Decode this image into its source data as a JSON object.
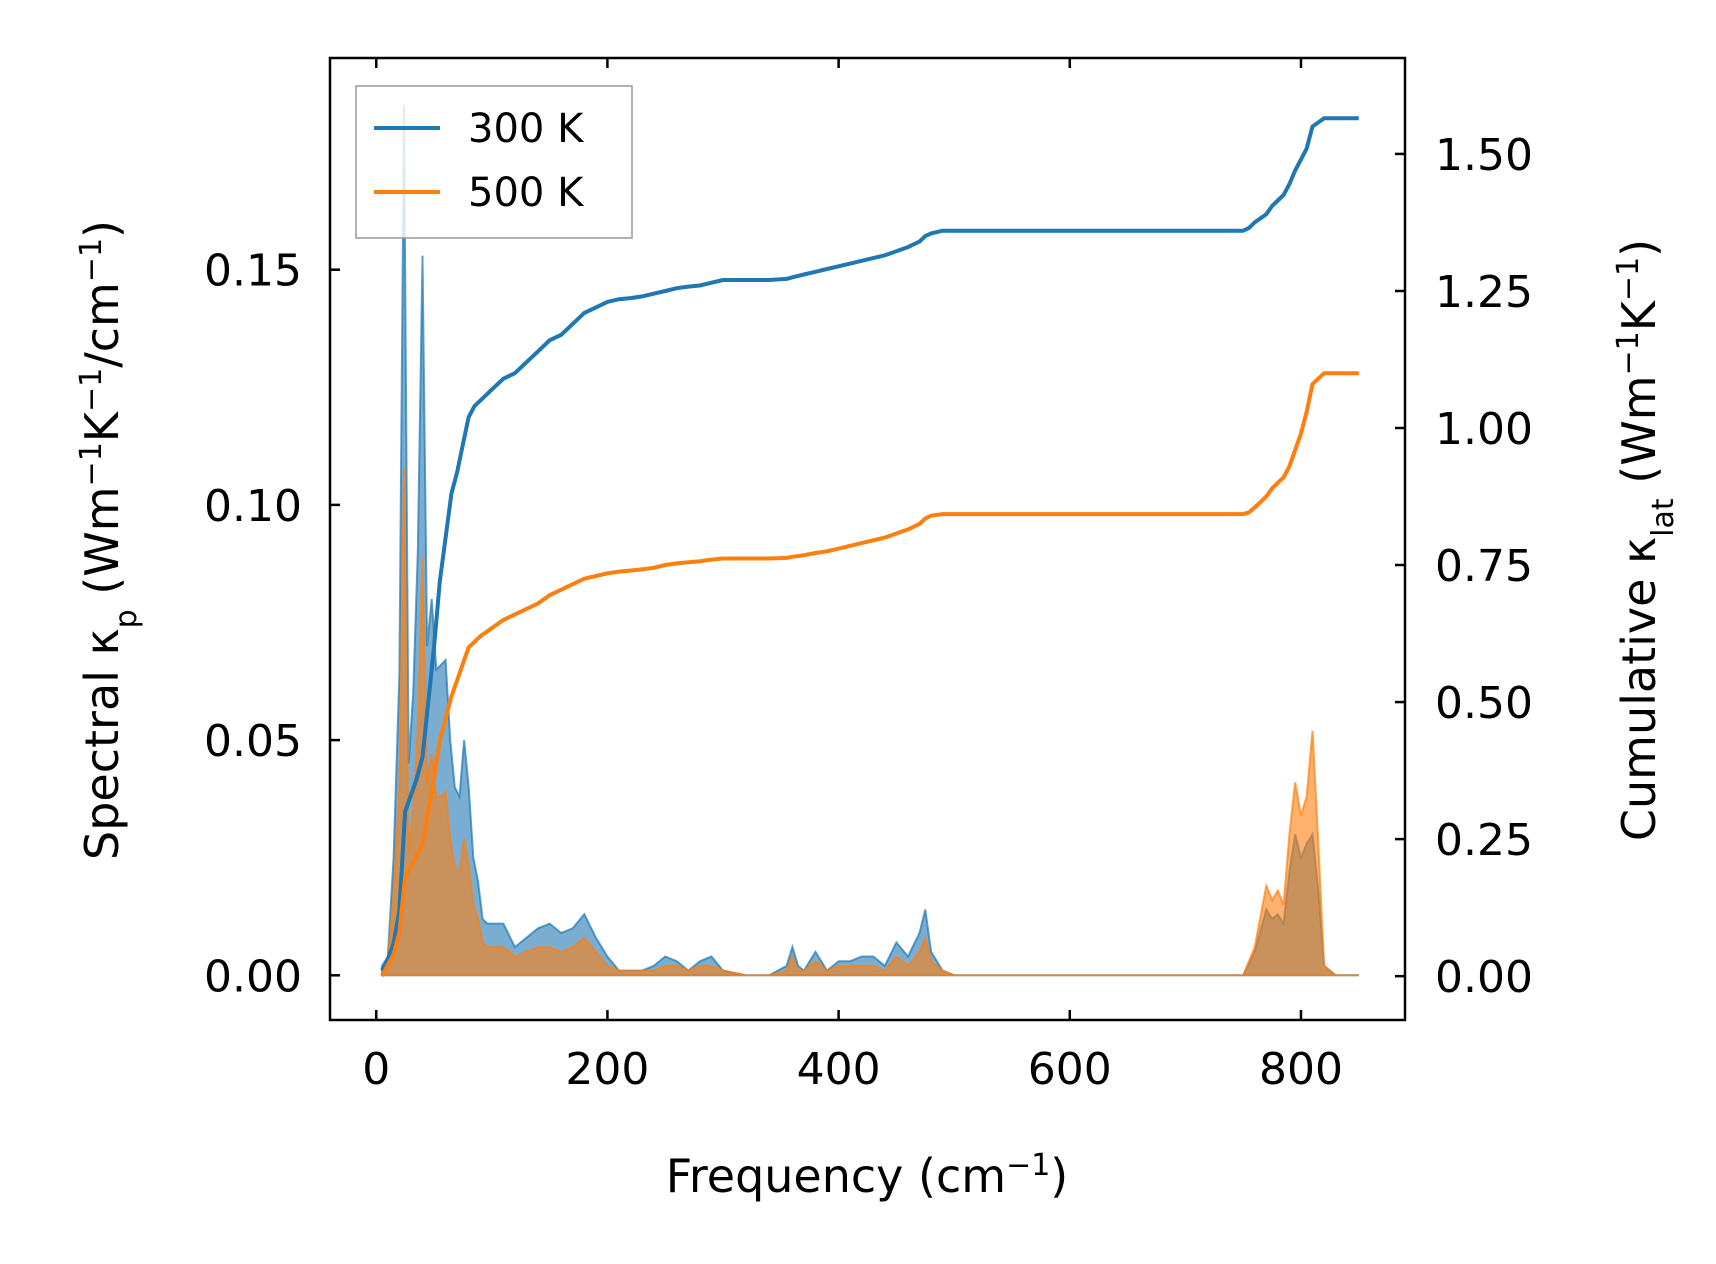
{
  "chart_data": {
    "type": "line",
    "title": "",
    "xlabel": {
      "text": "Frequency (cm",
      "sup": "−1",
      "close": ")"
    },
    "ylabel_left": {
      "text": "Spectral κ",
      "sub": "p",
      "unit": " (Wm",
      "sup1": "−1",
      "mid": "K",
      "sup2": "−1",
      "mid2": "/cm",
      "sup3": "−1",
      "close": ")"
    },
    "ylabel_right": {
      "text": "Cumulative κ",
      "sub": "lat",
      "unit": " (Wm",
      "sup1": "−1",
      "mid": "K",
      "sup2": "−1",
      "close": ")"
    },
    "xlim": [
      -40,
      890
    ],
    "ylim_left": [
      -0.0095,
      0.195
    ],
    "ylim_right": [
      -0.08,
      1.675
    ],
    "xticks": [
      "0",
      "200",
      "400",
      "600",
      "800"
    ],
    "xtick_values": [
      0,
      200,
      400,
      600,
      800
    ],
    "yticks_left": [
      "0.00",
      "0.05",
      "0.10",
      "0.15"
    ],
    "ytick_left_values": [
      0,
      0.05,
      0.1,
      0.15
    ],
    "yticks_right": [
      "0.00",
      "0.25",
      "0.50",
      "0.75",
      "1.00",
      "1.25",
      "1.50"
    ],
    "ytick_right_values": [
      0,
      0.25,
      0.5,
      0.75,
      1.0,
      1.25,
      1.5
    ],
    "legend": {
      "position": "top-left",
      "entries": [
        "300 K",
        "500 K"
      ]
    },
    "grid": false,
    "colors": {
      "300 K": "#1f77b4",
      "500 K": "#ff7f0e"
    },
    "spectral_series": [
      {
        "name": "300 K",
        "axis": "left",
        "x": [
          5,
          10,
          15,
          20,
          24,
          28,
          32,
          36,
          40,
          44,
          48,
          52,
          56,
          60,
          64,
          68,
          72,
          76,
          80,
          84,
          88,
          92,
          96,
          100,
          110,
          120,
          130,
          140,
          150,
          160,
          170,
          180,
          190,
          200,
          210,
          220,
          230,
          240,
          250,
          260,
          270,
          280,
          290,
          300,
          320,
          340,
          355,
          360,
          365,
          370,
          380,
          390,
          400,
          410,
          420,
          430,
          440,
          450,
          460,
          470,
          475,
          480,
          490,
          500,
          520,
          600,
          700,
          750,
          760,
          770,
          775,
          780,
          785,
          790,
          795,
          800,
          805,
          810,
          815,
          820,
          830,
          850
        ],
        "y": [
          0.002,
          0.004,
          0.025,
          0.064,
          0.185,
          0.045,
          0.06,
          0.09,
          0.153,
          0.07,
          0.08,
          0.065,
          0.066,
          0.067,
          0.05,
          0.04,
          0.038,
          0.05,
          0.04,
          0.025,
          0.02,
          0.012,
          0.011,
          0.011,
          0.011,
          0.006,
          0.008,
          0.01,
          0.011,
          0.009,
          0.01,
          0.013,
          0.008,
          0.004,
          0.001,
          0.001,
          0.001,
          0.002,
          0.004,
          0.003,
          0.001,
          0.003,
          0.004,
          0.001,
          0.0,
          0.0,
          0.002,
          0.006,
          0.002,
          0.001,
          0.005,
          0.001,
          0.003,
          0.003,
          0.004,
          0.004,
          0.002,
          0.007,
          0.004,
          0.009,
          0.014,
          0.005,
          0.001,
          0.0,
          0.0,
          0.0,
          0.0,
          0.0,
          0.005,
          0.014,
          0.012,
          0.013,
          0.011,
          0.022,
          0.03,
          0.025,
          0.028,
          0.03,
          0.018,
          0.002,
          0.0,
          0.0
        ]
      },
      {
        "name": "500 K",
        "axis": "left",
        "x": [
          5,
          10,
          15,
          20,
          24,
          28,
          32,
          36,
          40,
          44,
          48,
          52,
          56,
          60,
          64,
          68,
          72,
          76,
          80,
          84,
          88,
          92,
          96,
          100,
          110,
          120,
          130,
          140,
          150,
          160,
          170,
          180,
          190,
          200,
          210,
          220,
          230,
          240,
          250,
          260,
          270,
          280,
          290,
          300,
          320,
          340,
          355,
          360,
          365,
          370,
          380,
          390,
          400,
          410,
          420,
          430,
          440,
          450,
          460,
          470,
          475,
          480,
          490,
          500,
          520,
          600,
          700,
          750,
          760,
          770,
          775,
          780,
          785,
          790,
          795,
          800,
          805,
          810,
          815,
          820,
          830,
          850
        ],
        "y": [
          0.001,
          0.003,
          0.018,
          0.04,
          0.108,
          0.026,
          0.035,
          0.052,
          0.089,
          0.041,
          0.047,
          0.038,
          0.038,
          0.039,
          0.029,
          0.023,
          0.022,
          0.029,
          0.023,
          0.015,
          0.012,
          0.007,
          0.006,
          0.006,
          0.006,
          0.004,
          0.005,
          0.006,
          0.006,
          0.005,
          0.006,
          0.008,
          0.005,
          0.002,
          0.001,
          0.001,
          0.001,
          0.001,
          0.002,
          0.002,
          0.001,
          0.002,
          0.002,
          0.001,
          0.0,
          0.0,
          0.001,
          0.004,
          0.001,
          0.001,
          0.003,
          0.001,
          0.002,
          0.002,
          0.002,
          0.002,
          0.001,
          0.004,
          0.002,
          0.005,
          0.008,
          0.003,
          0.001,
          0.0,
          0.0,
          0.0,
          0.0,
          0.0,
          0.006,
          0.019,
          0.016,
          0.018,
          0.015,
          0.03,
          0.041,
          0.034,
          0.038,
          0.052,
          0.028,
          0.002,
          0.0,
          0.0
        ]
      }
    ],
    "cumulative_series": [
      {
        "name": "300 K",
        "axis": "right",
        "x": [
          5,
          10,
          15,
          20,
          25,
          30,
          35,
          40,
          45,
          50,
          55,
          60,
          65,
          70,
          75,
          80,
          85,
          90,
          100,
          110,
          120,
          130,
          140,
          150,
          160,
          170,
          180,
          190,
          200,
          210,
          220,
          230,
          240,
          250,
          260,
          270,
          280,
          290,
          300,
          320,
          340,
          355,
          360,
          370,
          380,
          390,
          400,
          420,
          440,
          460,
          470,
          475,
          480,
          490,
          500,
          520,
          600,
          700,
          750,
          755,
          760,
          770,
          775,
          780,
          785,
          790,
          795,
          800,
          805,
          810,
          820,
          850
        ],
        "y": [
          0.01,
          0.03,
          0.06,
          0.12,
          0.3,
          0.33,
          0.36,
          0.4,
          0.5,
          0.6,
          0.72,
          0.8,
          0.88,
          0.92,
          0.97,
          1.02,
          1.04,
          1.05,
          1.07,
          1.09,
          1.1,
          1.12,
          1.14,
          1.16,
          1.17,
          1.19,
          1.21,
          1.22,
          1.23,
          1.235,
          1.237,
          1.24,
          1.245,
          1.25,
          1.255,
          1.258,
          1.26,
          1.265,
          1.27,
          1.27,
          1.27,
          1.272,
          1.275,
          1.28,
          1.285,
          1.29,
          1.295,
          1.305,
          1.315,
          1.33,
          1.34,
          1.35,
          1.355,
          1.36,
          1.36,
          1.36,
          1.36,
          1.36,
          1.36,
          1.365,
          1.375,
          1.39,
          1.405,
          1.415,
          1.425,
          1.445,
          1.47,
          1.49,
          1.51,
          1.55,
          1.565,
          1.565
        ]
      },
      {
        "name": "500 K",
        "axis": "right",
        "x": [
          5,
          10,
          15,
          20,
          25,
          30,
          35,
          40,
          45,
          50,
          55,
          60,
          65,
          70,
          75,
          80,
          85,
          90,
          100,
          110,
          120,
          130,
          140,
          150,
          160,
          170,
          180,
          190,
          200,
          210,
          220,
          230,
          240,
          250,
          260,
          270,
          280,
          290,
          300,
          320,
          340,
          355,
          360,
          370,
          380,
          390,
          400,
          420,
          440,
          460,
          470,
          475,
          480,
          490,
          500,
          520,
          600,
          700,
          750,
          755,
          760,
          770,
          775,
          780,
          785,
          790,
          795,
          800,
          805,
          810,
          820,
          850
        ],
        "y": [
          0.0,
          0.02,
          0.04,
          0.08,
          0.18,
          0.2,
          0.22,
          0.24,
          0.3,
          0.36,
          0.43,
          0.47,
          0.51,
          0.54,
          0.57,
          0.6,
          0.61,
          0.62,
          0.635,
          0.65,
          0.66,
          0.67,
          0.68,
          0.695,
          0.705,
          0.715,
          0.725,
          0.73,
          0.735,
          0.738,
          0.74,
          0.742,
          0.745,
          0.75,
          0.753,
          0.755,
          0.757,
          0.76,
          0.762,
          0.762,
          0.762,
          0.763,
          0.765,
          0.768,
          0.772,
          0.775,
          0.78,
          0.79,
          0.8,
          0.815,
          0.825,
          0.835,
          0.84,
          0.843,
          0.843,
          0.843,
          0.843,
          0.843,
          0.843,
          0.846,
          0.855,
          0.875,
          0.89,
          0.9,
          0.91,
          0.93,
          0.96,
          0.99,
          1.03,
          1.08,
          1.1,
          1.1
        ]
      }
    ]
  }
}
